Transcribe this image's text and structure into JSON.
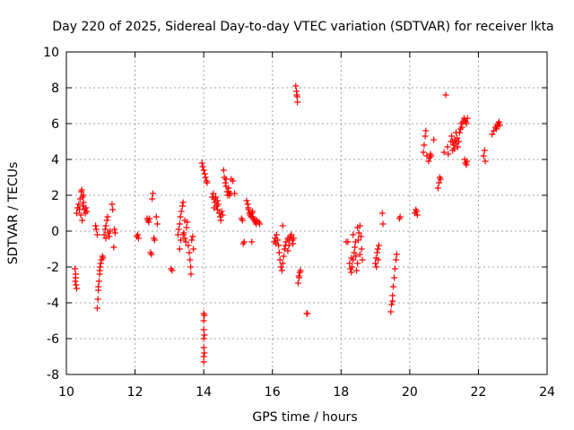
{
  "chart_data": {
    "type": "scatter",
    "title": "Day 220 of 2025, Sidereal Day-to-day VTEC variation (SDTVAR) for receiver lkta",
    "xlabel": "GPS time / hours",
    "ylabel": "SDTVAR / TECUs",
    "xlim": [
      10,
      24
    ],
    "ylim": [
      -8,
      10
    ],
    "xticks": [
      "10",
      "12",
      "14",
      "16",
      "18",
      "20",
      "22",
      "24"
    ],
    "yticks": [
      "-8",
      "-6",
      "-4",
      "-2",
      "0",
      "2",
      "4",
      "6",
      "8",
      "10"
    ],
    "grid": true,
    "marker": "+",
    "color": "#ff0000",
    "series": [
      {
        "name": "SDTVAR",
        "points": [
          [
            10.25,
            -2.1
          ],
          [
            10.27,
            -2.6
          ],
          [
            10.28,
            -3.0
          ],
          [
            10.3,
            -3.2
          ],
          [
            10.27,
            -2.4
          ],
          [
            10.26,
            -2.8
          ],
          [
            10.3,
            1.0
          ],
          [
            10.33,
            1.3
          ],
          [
            10.36,
            1.5
          ],
          [
            10.4,
            1.8
          ],
          [
            10.43,
            2.2
          ],
          [
            10.45,
            2.3
          ],
          [
            10.47,
            1.9
          ],
          [
            10.5,
            1.6
          ],
          [
            10.52,
            1.2
          ],
          [
            10.55,
            1.0
          ],
          [
            10.57,
            1.3
          ],
          [
            10.6,
            1.1
          ],
          [
            10.38,
            1.2
          ],
          [
            10.42,
            0.9
          ],
          [
            10.48,
            1.4
          ],
          [
            10.5,
            2.0
          ],
          [
            10.46,
            0.6
          ],
          [
            10.85,
            0.3
          ],
          [
            10.87,
            0.1
          ],
          [
            10.9,
            -0.2
          ],
          [
            10.9,
            -4.3
          ],
          [
            10.92,
            -3.8
          ],
          [
            10.93,
            -3.3
          ],
          [
            10.95,
            -2.8
          ],
          [
            10.97,
            -2.4
          ],
          [
            10.98,
            -2.0
          ],
          [
            11.0,
            -1.8
          ],
          [
            11.02,
            -1.6
          ],
          [
            11.05,
            -1.4
          ],
          [
            11.07,
            -1.5
          ],
          [
            10.93,
            -3.1
          ],
          [
            10.97,
            -2.2
          ],
          [
            11.1,
            -0.2
          ],
          [
            11.13,
            0.1
          ],
          [
            11.15,
            0.3
          ],
          [
            11.18,
            0.6
          ],
          [
            11.2,
            0.8
          ],
          [
            11.22,
            -0.1
          ],
          [
            11.25,
            -0.3
          ],
          [
            11.27,
            0.0
          ],
          [
            11.15,
            -0.4
          ],
          [
            11.33,
            1.5
          ],
          [
            11.35,
            1.2
          ],
          [
            11.38,
            -0.9
          ],
          [
            11.4,
            0.1
          ],
          [
            11.42,
            -0.1
          ],
          [
            12.05,
            -0.3
          ],
          [
            12.08,
            -0.2
          ],
          [
            12.1,
            -0.4
          ],
          [
            12.35,
            0.7
          ],
          [
            12.38,
            0.6
          ],
          [
            12.4,
            0.5
          ],
          [
            12.42,
            0.7
          ],
          [
            12.45,
            -1.2
          ],
          [
            12.48,
            -1.3
          ],
          [
            12.5,
            1.8
          ],
          [
            12.52,
            2.1
          ],
          [
            12.55,
            -0.4
          ],
          [
            12.57,
            -0.5
          ],
          [
            12.62,
            0.8
          ],
          [
            12.65,
            0.4
          ],
          [
            13.05,
            -2.1
          ],
          [
            13.08,
            -2.2
          ],
          [
            13.25,
            -0.2
          ],
          [
            13.27,
            0.1
          ],
          [
            13.3,
            0.4
          ],
          [
            13.32,
            0.8
          ],
          [
            13.35,
            1.1
          ],
          [
            13.38,
            1.4
          ],
          [
            13.4,
            1.6
          ],
          [
            13.42,
            -0.1
          ],
          [
            13.45,
            -0.4
          ],
          [
            13.48,
            -0.6
          ],
          [
            13.3,
            -1.0
          ],
          [
            13.33,
            -0.5
          ],
          [
            13.5,
            0.2
          ],
          [
            13.52,
            0.5
          ],
          [
            13.55,
            -0.8
          ],
          [
            13.58,
            -1.2
          ],
          [
            13.6,
            -1.6
          ],
          [
            13.62,
            -2.0
          ],
          [
            13.63,
            -2.4
          ],
          [
            13.65,
            -0.5
          ],
          [
            13.68,
            -0.3
          ],
          [
            13.7,
            -1.0
          ],
          [
            13.4,
            -0.2
          ],
          [
            13.45,
            0.6
          ],
          [
            14.0,
            -4.6
          ],
          [
            14.0,
            -5.0
          ],
          [
            14.0,
            -5.5
          ],
          [
            14.0,
            -6.0
          ],
          [
            14.0,
            -6.5
          ],
          [
            14.0,
            -7.0
          ],
          [
            14.0,
            -7.3
          ],
          [
            14.02,
            -4.7
          ],
          [
            14.02,
            -5.8
          ],
          [
            14.02,
            -6.8
          ],
          [
            13.95,
            3.8
          ],
          [
            13.97,
            3.6
          ],
          [
            14.0,
            3.4
          ],
          [
            14.03,
            3.2
          ],
          [
            14.05,
            3.0
          ],
          [
            14.08,
            2.8
          ],
          [
            14.1,
            2.7
          ],
          [
            14.25,
            1.9
          ],
          [
            14.28,
            2.1
          ],
          [
            14.3,
            1.8
          ],
          [
            14.33,
            1.6
          ],
          [
            14.35,
            1.9
          ],
          [
            14.38,
            1.4
          ],
          [
            14.4,
            1.2
          ],
          [
            14.42,
            1.5
          ],
          [
            14.45,
            1.0
          ],
          [
            14.48,
            0.8
          ],
          [
            14.5,
            0.6
          ],
          [
            14.52,
            1.1
          ],
          [
            14.55,
            0.9
          ],
          [
            14.3,
            1.3
          ],
          [
            14.4,
            1.7
          ],
          [
            14.58,
            3.4
          ],
          [
            14.6,
            3.0
          ],
          [
            14.63,
            2.7
          ],
          [
            14.65,
            2.5
          ],
          [
            14.68,
            2.2
          ],
          [
            14.7,
            2.0
          ],
          [
            14.73,
            2.2
          ],
          [
            14.75,
            2.0
          ],
          [
            14.78,
            2.1
          ],
          [
            14.8,
            2.9
          ],
          [
            14.85,
            2.8
          ],
          [
            14.9,
            2.1
          ],
          [
            14.65,
            2.9
          ],
          [
            14.72,
            2.4
          ],
          [
            15.1,
            0.7
          ],
          [
            15.13,
            0.6
          ],
          [
            15.15,
            -0.7
          ],
          [
            15.18,
            -0.6
          ],
          [
            15.25,
            1.7
          ],
          [
            15.28,
            1.5
          ],
          [
            15.3,
            1.2
          ],
          [
            15.33,
            1.0
          ],
          [
            15.35,
            0.9
          ],
          [
            15.38,
            0.8
          ],
          [
            15.4,
            1.0
          ],
          [
            15.43,
            0.8
          ],
          [
            15.45,
            0.7
          ],
          [
            15.48,
            0.6
          ],
          [
            15.5,
            0.5
          ],
          [
            15.53,
            0.4
          ],
          [
            15.55,
            0.6
          ],
          [
            15.4,
            -0.6
          ],
          [
            15.6,
            0.5
          ],
          [
            15.63,
            0.4
          ],
          [
            15.3,
            1.3
          ],
          [
            15.42,
            1.1
          ],
          [
            16.05,
            -0.6
          ],
          [
            16.08,
            -0.4
          ],
          [
            16.1,
            -0.7
          ],
          [
            16.12,
            -0.2
          ],
          [
            16.15,
            -0.5
          ],
          [
            16.18,
            -0.8
          ],
          [
            16.2,
            -1.2
          ],
          [
            16.22,
            -1.6
          ],
          [
            16.25,
            -2.0
          ],
          [
            16.28,
            -2.2
          ],
          [
            16.3,
            -1.8
          ],
          [
            16.33,
            -1.4
          ],
          [
            16.35,
            -1.0
          ],
          [
            16.38,
            -0.8
          ],
          [
            16.3,
            0.3
          ],
          [
            16.4,
            -0.6
          ],
          [
            16.45,
            -0.4
          ],
          [
            16.48,
            -0.8
          ],
          [
            16.5,
            -0.5
          ],
          [
            16.52,
            -0.3
          ],
          [
            16.55,
            -0.2
          ],
          [
            16.58,
            -0.5
          ],
          [
            16.6,
            -0.7
          ],
          [
            16.62,
            -0.4
          ],
          [
            16.45,
            -1.1
          ],
          [
            16.68,
            8.1
          ],
          [
            16.7,
            7.8
          ],
          [
            16.72,
            7.5
          ],
          [
            16.73,
            7.2
          ],
          [
            16.71,
            7.6
          ],
          [
            16.75,
            -2.9
          ],
          [
            16.78,
            -2.6
          ],
          [
            16.8,
            -2.3
          ],
          [
            16.82,
            -2.2
          ],
          [
            16.77,
            -2.5
          ],
          [
            17.0,
            -4.6
          ],
          [
            17.02,
            -4.6
          ],
          [
            18.15,
            -0.6
          ],
          [
            18.2,
            -0.6
          ],
          [
            18.25,
            -1.8
          ],
          [
            18.27,
            -2.1
          ],
          [
            18.3,
            -2.3
          ],
          [
            18.32,
            -2.0
          ],
          [
            18.35,
            -1.6
          ],
          [
            18.38,
            -1.2
          ],
          [
            18.4,
            -0.9
          ],
          [
            18.43,
            -1.4
          ],
          [
            18.45,
            -2.2
          ],
          [
            18.48,
            -1.8
          ],
          [
            18.5,
            -0.5
          ],
          [
            18.52,
            -0.1
          ],
          [
            18.55,
            0.3
          ],
          [
            18.58,
            -0.3
          ],
          [
            18.6,
            -1.0
          ],
          [
            18.62,
            -1.6
          ],
          [
            18.35,
            -0.2
          ],
          [
            18.42,
            -0.6
          ],
          [
            18.48,
            0.2
          ],
          [
            18.3,
            -1.5
          ],
          [
            18.55,
            -1.3
          ],
          [
            19.0,
            -1.8
          ],
          [
            19.02,
            -1.5
          ],
          [
            19.05,
            -1.2
          ],
          [
            19.07,
            -1.0
          ],
          [
            19.1,
            -0.8
          ],
          [
            19.03,
            -2.0
          ],
          [
            19.08,
            -1.6
          ],
          [
            19.2,
            1.0
          ],
          [
            19.22,
            0.4
          ],
          [
            19.45,
            -4.5
          ],
          [
            19.47,
            -4.1
          ],
          [
            19.5,
            -3.6
          ],
          [
            19.52,
            -3.1
          ],
          [
            19.55,
            -2.6
          ],
          [
            19.57,
            -2.1
          ],
          [
            19.6,
            -1.6
          ],
          [
            19.62,
            -1.3
          ],
          [
            19.5,
            -3.9
          ],
          [
            19.7,
            0.7
          ],
          [
            19.72,
            0.8
          ],
          [
            20.15,
            1.0
          ],
          [
            20.18,
            1.2
          ],
          [
            20.2,
            1.1
          ],
          [
            20.22,
            0.9
          ],
          [
            20.4,
            4.4
          ],
          [
            20.42,
            4.8
          ],
          [
            20.45,
            5.3
          ],
          [
            20.47,
            5.6
          ],
          [
            20.5,
            4.2
          ],
          [
            20.55,
            3.9
          ],
          [
            20.58,
            4.1
          ],
          [
            20.6,
            4.3
          ],
          [
            20.62,
            4.2
          ],
          [
            20.7,
            5.1
          ],
          [
            20.82,
            2.4
          ],
          [
            20.85,
            2.7
          ],
          [
            20.87,
            3.0
          ],
          [
            20.9,
            2.9
          ],
          [
            21.0,
            4.4
          ],
          [
            21.05,
            7.6
          ],
          [
            21.1,
            4.7
          ],
          [
            21.12,
            4.3
          ],
          [
            21.2,
            5.0
          ],
          [
            21.22,
            5.3
          ],
          [
            21.25,
            5.0
          ],
          [
            21.28,
            4.8
          ],
          [
            21.3,
            4.6
          ],
          [
            21.32,
            5.1
          ],
          [
            21.35,
            4.9
          ],
          [
            21.38,
            5.2
          ],
          [
            21.4,
            4.7
          ],
          [
            21.43,
            5.0
          ],
          [
            21.45,
            5.5
          ],
          [
            21.48,
            5.7
          ],
          [
            21.5,
            6.0
          ],
          [
            21.52,
            5.8
          ],
          [
            21.55,
            6.1
          ],
          [
            21.58,
            6.3
          ],
          [
            21.6,
            6.2
          ],
          [
            21.63,
            6.1
          ],
          [
            21.65,
            6.0
          ],
          [
            21.68,
            6.3
          ],
          [
            21.25,
            4.5
          ],
          [
            21.35,
            5.5
          ],
          [
            21.6,
            4.0
          ],
          [
            21.62,
            3.8
          ],
          [
            21.65,
            3.7
          ],
          [
            21.67,
            3.9
          ],
          [
            22.15,
            4.2
          ],
          [
            22.18,
            4.5
          ],
          [
            22.2,
            3.9
          ],
          [
            22.4,
            5.4
          ],
          [
            22.45,
            5.6
          ],
          [
            22.5,
            5.8
          ],
          [
            22.52,
            5.7
          ],
          [
            22.55,
            5.9
          ],
          [
            22.58,
            6.0
          ],
          [
            22.6,
            6.1
          ],
          [
            22.62,
            5.9
          ]
        ]
      }
    ]
  }
}
